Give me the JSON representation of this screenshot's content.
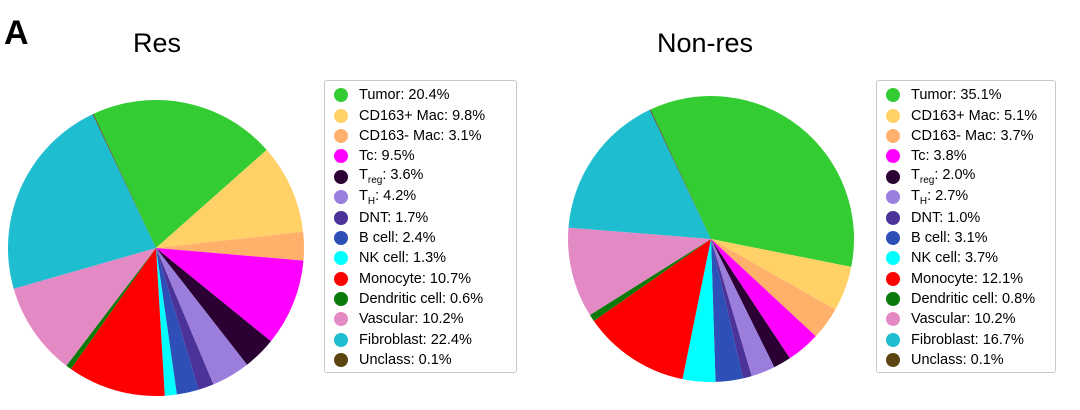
{
  "panel_label": "A",
  "chart_data": [
    {
      "type": "pie",
      "title": "Res",
      "labels": [
        "Tumor",
        "CD163+ Mac",
        "CD163- Mac",
        "Tc",
        "T_reg",
        "T_H",
        "DNT",
        "B cell",
        "NK cell",
        "Monocyte",
        "Dendritic cell",
        "Vascular",
        "Fibroblast",
        "Unclass"
      ],
      "values": [
        20.4,
        9.8,
        3.1,
        9.5,
        3.6,
        4.2,
        1.7,
        2.4,
        1.3,
        10.7,
        0.6,
        10.2,
        22.4,
        0.1
      ],
      "value_labels": [
        "20.4%",
        "9.8%",
        "3.1%",
        "9.5%",
        "3.6%",
        "4.2%",
        "1.7%",
        "2.4%",
        "1.3%",
        "10.7%",
        "0.6%",
        "10.2%",
        "22.4%",
        "0.1%"
      ],
      "legend_position": "right"
    },
    {
      "type": "pie",
      "title": "Non-res",
      "labels": [
        "Tumor",
        "CD163+ Mac",
        "CD163- Mac",
        "Tc",
        "T_reg",
        "T_H",
        "DNT",
        "B cell",
        "NK cell",
        "Monocyte",
        "Dendritic cell",
        "Vascular",
        "Fibroblast",
        "Unclass"
      ],
      "values": [
        35.1,
        5.1,
        3.7,
        3.8,
        2.0,
        2.7,
        1.0,
        3.1,
        3.7,
        12.1,
        0.8,
        10.2,
        16.7,
        0.1
      ],
      "value_labels": [
        "35.1%",
        "5.1%",
        "3.7%",
        "3.8%",
        "2.0%",
        "2.7%",
        "1.0%",
        "3.1%",
        "3.7%",
        "12.1%",
        "0.8%",
        "10.2%",
        "16.7%",
        "0.1%"
      ],
      "legend_position": "right"
    }
  ],
  "colors": [
    "#33cc33",
    "#ffd166",
    "#ffb06b",
    "#ff00ff",
    "#2b0033",
    "#9b7ddb",
    "#4b3399",
    "#2f4fb8",
    "#00ffff",
    "#ff0000",
    "#0b7a0b",
    "#e38ac4",
    "#1fbdd0",
    "#5c4510"
  ]
}
